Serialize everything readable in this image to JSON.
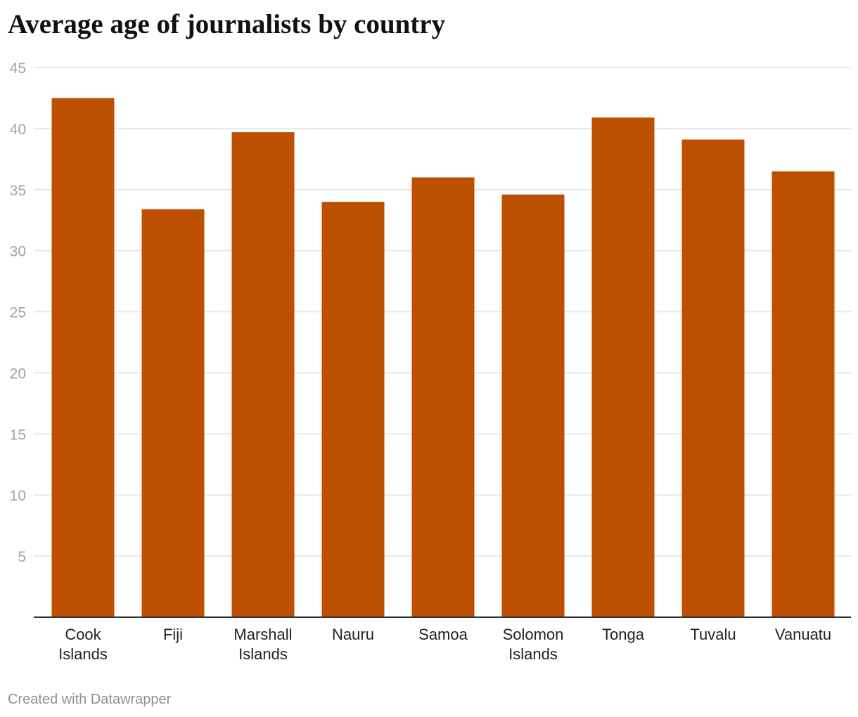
{
  "chart_data": {
    "type": "bar",
    "title": "Average age of journalists by country",
    "categories": [
      [
        "Cook",
        "Islands"
      ],
      [
        "Fiji"
      ],
      [
        "Marshall",
        "Islands"
      ],
      [
        "Nauru"
      ],
      [
        "Samoa"
      ],
      [
        "Solomon",
        "Islands"
      ],
      [
        "Tonga"
      ],
      [
        "Tuvalu"
      ],
      [
        "Vanuatu"
      ]
    ],
    "values": [
      42.5,
      33.4,
      39.7,
      34.0,
      36.0,
      34.6,
      40.9,
      39.1,
      36.5
    ],
    "xlabel": "",
    "ylabel": "",
    "ylim": [
      0,
      45
    ],
    "yticks": [
      5,
      10,
      15,
      20,
      25,
      30,
      35,
      40,
      45
    ],
    "grid": true,
    "bar_color": "#bd5000",
    "grid_color": "#e2e2e2",
    "axis_color": "#333333",
    "tick_label_color": "#a3a3a3",
    "category_label_color": "#222222"
  },
  "footer": {
    "credit": "Created with Datawrapper"
  }
}
